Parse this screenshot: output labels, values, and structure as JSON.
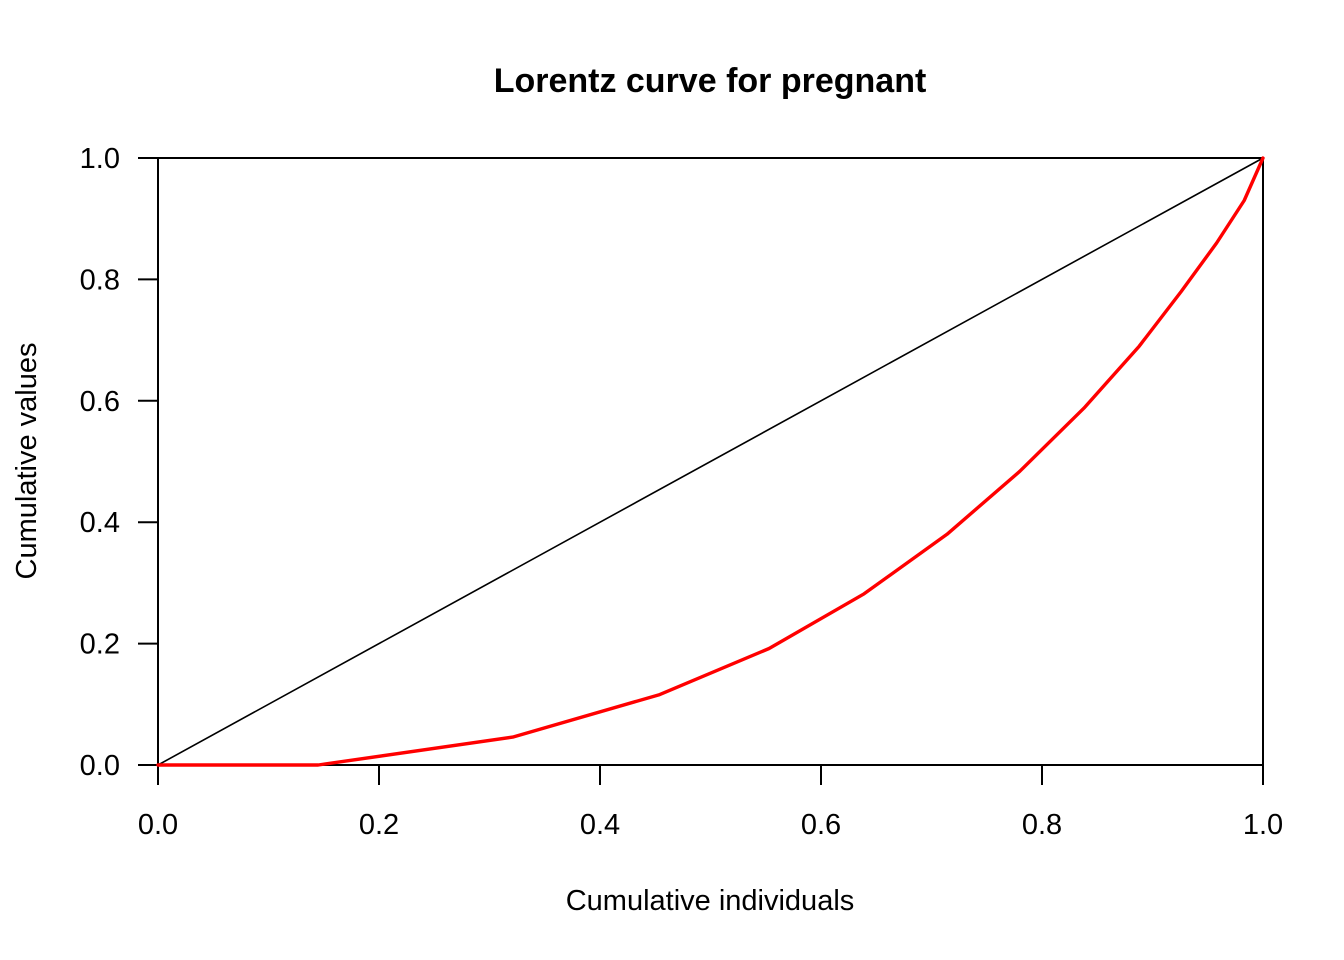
{
  "chart_data": {
    "type": "line",
    "title": "Lorentz curve for pregnant",
    "xlabel": "Cumulative individuals",
    "ylabel": "Cumulative values",
    "xlim": [
      0,
      1
    ],
    "ylim": [
      0,
      1
    ],
    "x_ticks": [
      "0.0",
      "0.2",
      "0.4",
      "0.6",
      "0.8",
      "1.0"
    ],
    "y_ticks": [
      "0.0",
      "0.2",
      "0.4",
      "0.6",
      "0.8",
      "1.0"
    ],
    "grid": false,
    "series": [
      {
        "name": "equality line",
        "color": "#000000",
        "x": [
          0,
          1
        ],
        "y": [
          0,
          1
        ]
      },
      {
        "name": "Lorentz curve",
        "color": "#ff0000",
        "x": [
          0,
          0.145,
          0.321,
          0.454,
          0.553,
          0.639,
          0.714,
          0.78,
          0.838,
          0.888,
          0.926,
          0.958,
          0.983,
          1.0
        ],
        "y": [
          0,
          0,
          0.046,
          0.116,
          0.192,
          0.282,
          0.38,
          0.484,
          0.588,
          0.69,
          0.78,
          0.86,
          0.93,
          1.0
        ]
      }
    ]
  }
}
